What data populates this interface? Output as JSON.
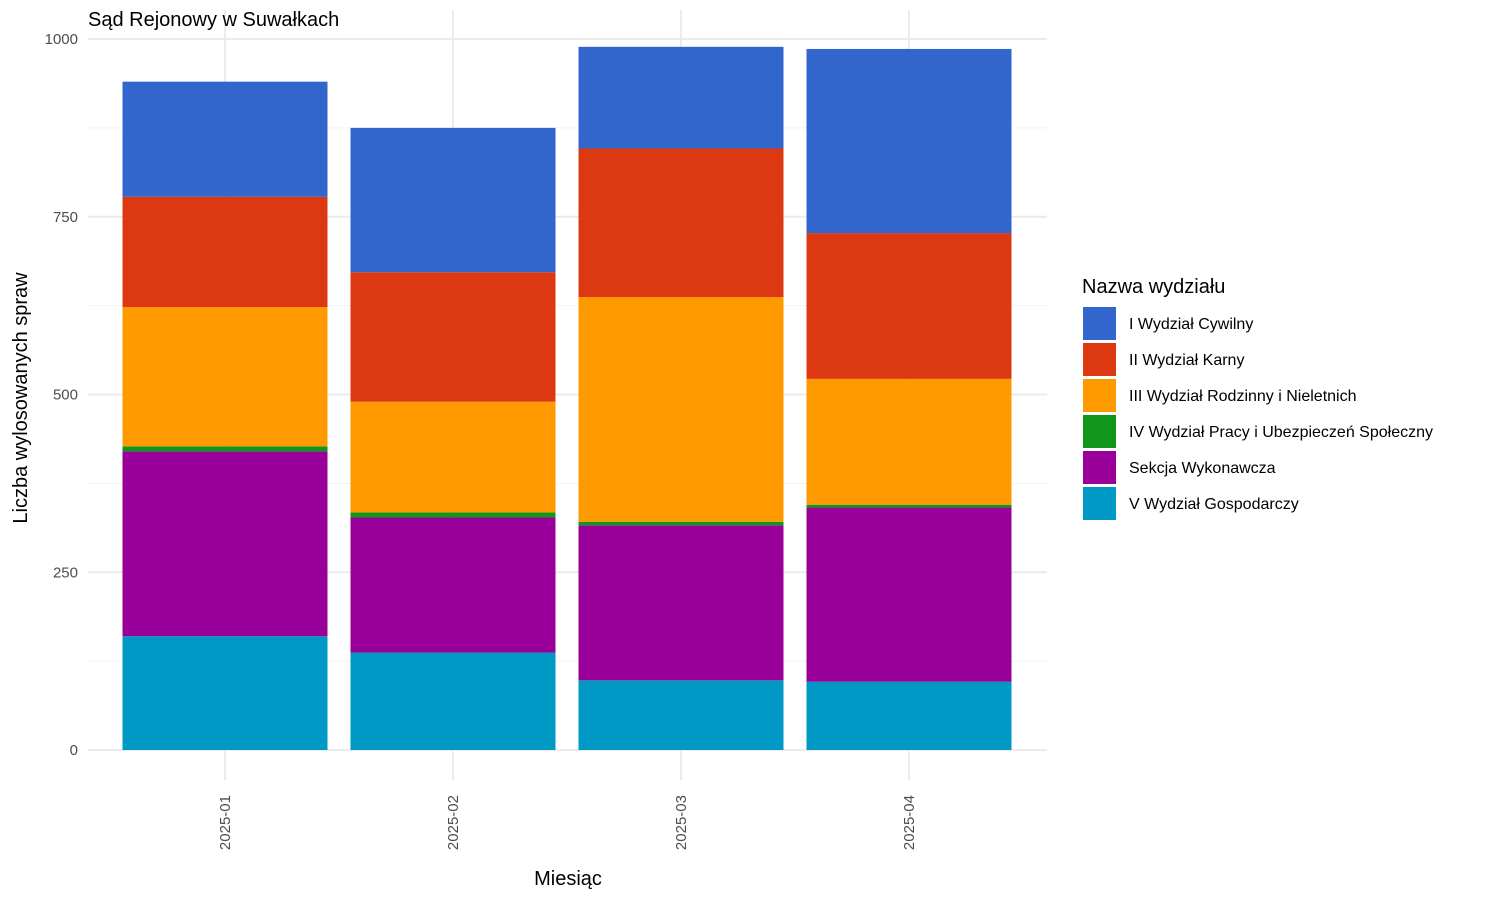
{
  "chart_data": {
    "type": "bar",
    "stacked": true,
    "title": "Sąd Rejonowy w Suwałkach",
    "xlabel": "Miesiąc",
    "ylabel": "Liczba wylosowanych spraw",
    "ylim": [
      0,
      1000
    ],
    "yticks": [
      0,
      250,
      500,
      750,
      1000
    ],
    "ytick_labels": [
      "0",
      "250",
      "500",
      "750",
      "1000"
    ],
    "grid": true,
    "legend_title": "Nazwa wydziału",
    "legend_position": "right",
    "categories": [
      "2025-01",
      "2025-02",
      "2025-03",
      "2025-04"
    ],
    "series": [
      {
        "name": "V Wydział Gospodarczy",
        "color": "#0099C6",
        "values": [
          160,
          137,
          98,
          96
        ]
      },
      {
        "name": "Sekcja Wykonawcza",
        "color": "#990099",
        "values": [
          260,
          190,
          218,
          245
        ]
      },
      {
        "name": "IV Wydział Pracy i Ubezpieczeń Społeczny",
        "color": "#109618",
        "values": [
          7,
          7,
          5,
          4
        ]
      },
      {
        "name": "III Wydział Rodzinny i Nieletnich",
        "color": "#FF9900",
        "values": [
          196,
          156,
          316,
          177
        ]
      },
      {
        "name": "II Wydział Karny",
        "color": "#DC3912",
        "values": [
          155,
          182,
          209,
          205
        ]
      },
      {
        "name": "I Wydział Cywilny",
        "color": "#3366CC",
        "values": [
          162,
          203,
          143,
          259
        ]
      }
    ],
    "legend_order": [
      "I Wydział Cywilny",
      "II Wydział Karny",
      "III Wydział Rodzinny i Nieletnich",
      "IV Wydział Pracy i Ubezpieczeń Społeczny",
      "Sekcja Wykonawcza",
      "V Wydział Gospodarczy"
    ]
  }
}
